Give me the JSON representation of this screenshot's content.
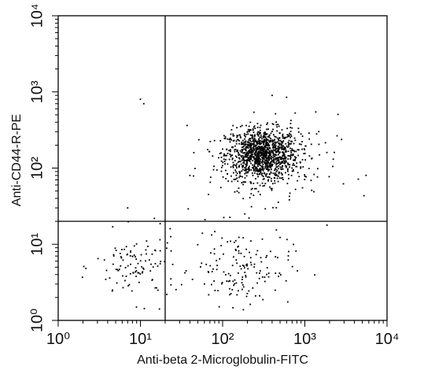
{
  "chart_data": {
    "type": "scatter",
    "title": "",
    "xlabel": "Anti-beta 2-Microglobulin-FITC",
    "ylabel": "Anti-CD44-R-PE",
    "x_scale": "log",
    "y_scale": "log",
    "xlim": [
      1,
      10000
    ],
    "ylim": [
      1,
      10000
    ],
    "x_ticks": [
      "10⁰",
      "10¹",
      "10²",
      "10³",
      "10⁴"
    ],
    "y_ticks": [
      "10⁰",
      "10¹",
      "10²",
      "10³",
      "10⁴"
    ],
    "quadrant_gates": {
      "x": 20,
      "y": 20
    },
    "grid": false,
    "clusters": [
      {
        "center": [
          300,
          150
        ],
        "spread_log": [
          0.22,
          0.17
        ],
        "count": 1200
      },
      {
        "center": [
          9,
          5
        ],
        "spread_log": [
          0.25,
          0.22
        ],
        "count": 110
      },
      {
        "center": [
          170,
          5
        ],
        "spread_log": [
          0.3,
          0.25
        ],
        "count": 150
      },
      {
        "center": [
          400,
          100
        ],
        "spread_log": [
          0.4,
          0.35
        ],
        "count": 120
      }
    ],
    "outliers": [
      [
        10,
        800
      ],
      [
        11,
        700
      ],
      [
        7,
        30
      ],
      [
        40,
        80
      ],
      [
        400,
        900
      ],
      [
        600,
        850
      ]
    ]
  }
}
